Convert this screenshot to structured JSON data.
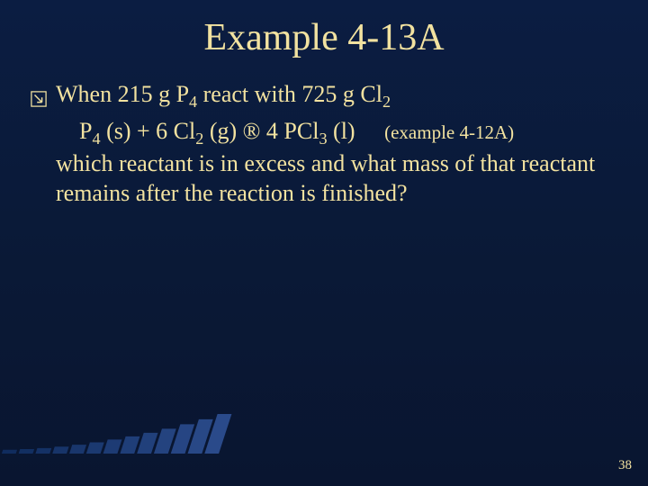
{
  "title": "Example 4-13A",
  "bullet": {
    "line1_pre": "When 215 g P",
    "line1_sub1": "4",
    "line1_mid": " react with 725 g Cl",
    "line1_sub2": "2"
  },
  "equation": {
    "p": "P",
    "p_sub": "4",
    "p_state": " (s)  +  6 Cl",
    "cl_sub": "2",
    "cl_state": " (g)  ",
    "arrow": "®",
    "prod": "  4 PCl",
    "prod_sub": "3",
    "prod_state": " (l)",
    "ref": "(example 4-12A)"
  },
  "cont": "which reactant is in excess and what mass of that reactant remains after the reaction is finished?",
  "page": "38",
  "colors": {
    "text": "#f2e2a0",
    "bg_top": "#0b1d42",
    "bg_bottom": "#091530",
    "bar_dark": "#0e2a5a",
    "bar_light": "#2a4a8a"
  },
  "deco": {
    "bar_count": 14,
    "start_height": 4,
    "end_height": 44
  }
}
